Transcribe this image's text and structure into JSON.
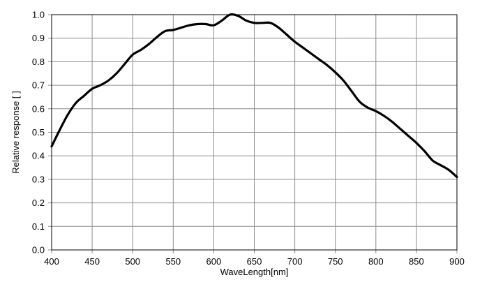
{
  "chart_data": {
    "type": "line",
    "title": "",
    "xlabel": "WaveLength[nm]",
    "ylabel": "Relative response [ ]",
    "xlim": [
      400,
      900
    ],
    "ylim": [
      0.0,
      1.0
    ],
    "grid": true,
    "x_ticks": [
      "400",
      "450",
      "500",
      "550",
      "600",
      "650",
      "700",
      "750",
      "800",
      "850",
      "900"
    ],
    "y_ticks": [
      "0.0",
      "0.1",
      "0.2",
      "0.3",
      "0.4",
      "0.5",
      "0.6",
      "0.7",
      "0.8",
      "0.9",
      "1.0"
    ],
    "series": [
      {
        "color": "#000000",
        "x": [
          400,
          410,
          420,
          430,
          440,
          450,
          460,
          470,
          480,
          490,
          500,
          510,
          520,
          530,
          540,
          550,
          560,
          570,
          580,
          590,
          600,
          610,
          620,
          630,
          640,
          650,
          660,
          670,
          680,
          690,
          700,
          710,
          720,
          730,
          740,
          750,
          760,
          770,
          780,
          790,
          800,
          810,
          820,
          830,
          840,
          850,
          860,
          870,
          880,
          890,
          900
        ],
        "y": [
          0.44,
          0.51,
          0.575,
          0.625,
          0.655,
          0.685,
          0.7,
          0.72,
          0.75,
          0.79,
          0.83,
          0.85,
          0.875,
          0.905,
          0.93,
          0.935,
          0.945,
          0.955,
          0.96,
          0.96,
          0.955,
          0.975,
          1.0,
          0.995,
          0.975,
          0.965,
          0.965,
          0.965,
          0.945,
          0.915,
          0.885,
          0.86,
          0.835,
          0.81,
          0.785,
          0.755,
          0.72,
          0.675,
          0.63,
          0.605,
          0.59,
          0.57,
          0.545,
          0.515,
          0.485,
          0.455,
          0.42,
          0.38,
          0.36,
          0.34,
          0.31
        ]
      }
    ]
  }
}
